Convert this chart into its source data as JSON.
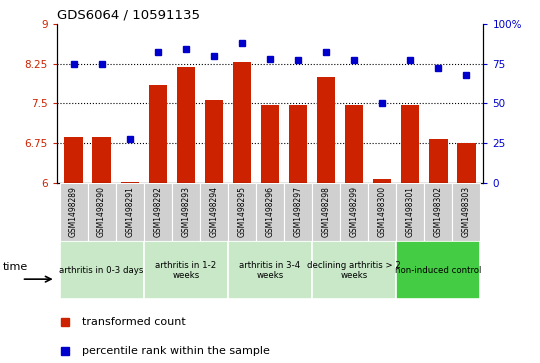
{
  "title": "GDS6064 / 10591135",
  "samples": [
    "GSM1498289",
    "GSM1498290",
    "GSM1498291",
    "GSM1498292",
    "GSM1498293",
    "GSM1498294",
    "GSM1498295",
    "GSM1498296",
    "GSM1498297",
    "GSM1498298",
    "GSM1498299",
    "GSM1498300",
    "GSM1498301",
    "GSM1498302",
    "GSM1498303"
  ],
  "bar_values": [
    6.87,
    6.87,
    6.03,
    7.84,
    8.19,
    7.56,
    8.28,
    7.47,
    7.47,
    8.0,
    7.47,
    6.09,
    7.47,
    6.84,
    6.75
  ],
  "dot_values": [
    75,
    75,
    28,
    82,
    84,
    80,
    88,
    78,
    77,
    82,
    77,
    50,
    77,
    72,
    68
  ],
  "bar_color": "#cc2200",
  "dot_color": "#0000cc",
  "ylim_left": [
    6,
    9
  ],
  "ylim_right": [
    0,
    100
  ],
  "yticks_left": [
    6,
    6.75,
    7.5,
    8.25,
    9
  ],
  "ytick_labels_left": [
    "6",
    "6.75",
    "7.5",
    "8.25",
    "9"
  ],
  "yticks_right": [
    0,
    25,
    50,
    75,
    100
  ],
  "ytick_labels_right": [
    "0",
    "25",
    "50",
    "75",
    "100%"
  ],
  "hlines": [
    6.75,
    7.5,
    8.25
  ],
  "groups": [
    {
      "label": "arthritis in 0-3 days",
      "start": 0,
      "end": 3
    },
    {
      "label": "arthritis in 1-2\nweeks",
      "start": 3,
      "end": 6
    },
    {
      "label": "arthritis in 3-4\nweeks",
      "start": 6,
      "end": 9
    },
    {
      "label": "declining arthritis > 2\nweeks",
      "start": 9,
      "end": 12
    },
    {
      "label": "non-induced control",
      "start": 12,
      "end": 15
    }
  ],
  "group_bg_colors": [
    "#c8e8c8",
    "#c8e8c8",
    "#c8e8c8",
    "#c8e8c8",
    "#44cc44"
  ],
  "sample_box_color": "#d0d0d0",
  "legend_bar_label": "transformed count",
  "legend_dot_label": "percentile rank within the sample",
  "time_label": "time"
}
